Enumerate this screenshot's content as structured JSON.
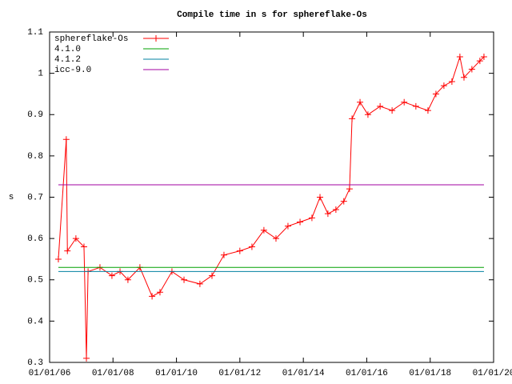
{
  "chart_data": {
    "type": "line",
    "title": "Compile time in s for sphereflake-Os",
    "ylabel": "s",
    "xlim": [
      "2006-01-01",
      "2020-01-01"
    ],
    "xticks": [
      {
        "value": "2006-01-01",
        "label": "01/01/06"
      },
      {
        "value": "2008-01-01",
        "label": "01/01/08"
      },
      {
        "value": "2010-01-01",
        "label": "01/01/10"
      },
      {
        "value": "2012-01-01",
        "label": "01/01/12"
      },
      {
        "value": "2014-01-01",
        "label": "01/01/14"
      },
      {
        "value": "2016-01-01",
        "label": "01/01/16"
      },
      {
        "value": "2018-01-01",
        "label": "01/01/18"
      },
      {
        "value": "2020-01-01",
        "label": "01/01/20"
      }
    ],
    "ylim": [
      0.3,
      1.1
    ],
    "yticks": [
      0.3,
      0.4,
      0.5,
      0.6,
      0.7,
      0.8,
      0.9,
      1,
      1.1
    ],
    "grid": false,
    "legend": "top-left",
    "series": [
      {
        "name": "sphereflake-Os",
        "color": "#ff0000",
        "marker": "plus",
        "x": [
          "2006-04-12",
          "2006-07-12",
          "2006-07-25",
          "2006-10-31",
          "2007-02-01",
          "2007-03-01",
          "2007-03-20",
          "2007-08-04",
          "2007-12-20",
          "2008-03-22",
          "2008-06-21",
          "2008-11-06",
          "2009-03-26",
          "2009-06-25",
          "2009-11-10",
          "2010-03-29",
          "2010-09-28",
          "2011-02-14",
          "2011-07-02",
          "2012-01-01",
          "2012-05-19",
          "2012-10-04",
          "2013-02-20",
          "2013-07-08",
          "2013-11-24",
          "2014-04-10",
          "2014-07-12",
          "2014-10-11",
          "2015-01-11",
          "2015-04-12",
          "2015-06-17",
          "2015-07-16",
          "2015-10-16",
          "2016-01-15",
          "2016-06-03",
          "2016-10-19",
          "2017-03-07",
          "2017-07-20",
          "2017-12-06",
          "2018-03-08",
          "2018-06-08",
          "2018-09-08",
          "2018-12-09",
          "2019-01-25",
          "2019-04-26",
          "2019-07-27",
          "2019-09-12"
        ],
        "values": [
          0.55,
          0.84,
          0.57,
          0.6,
          0.58,
          0.31,
          0.52,
          0.53,
          0.51,
          0.52,
          0.5,
          0.53,
          0.46,
          0.47,
          0.52,
          0.5,
          0.49,
          0.51,
          0.56,
          0.57,
          0.58,
          0.62,
          0.6,
          0.63,
          0.64,
          0.65,
          0.7,
          0.66,
          0.67,
          0.69,
          0.72,
          0.89,
          0.93,
          0.9,
          0.92,
          0.91,
          0.93,
          0.92,
          0.91,
          0.95,
          0.97,
          0.98,
          1.04,
          0.99,
          1.01,
          1.03,
          1.04
        ]
      },
      {
        "name": "4.1.0",
        "color": "#00a000",
        "x": [
          "2006-04-12",
          "2019-09-12"
        ],
        "values": [
          0.53,
          0.53
        ]
      },
      {
        "name": "4.1.2",
        "color": "#0080a0",
        "x": [
          "2006-04-12",
          "2019-09-12"
        ],
        "values": [
          0.52,
          0.52
        ]
      },
      {
        "name": "icc-9.0",
        "color": "#a000a0",
        "x": [
          "2006-04-12",
          "2019-09-12"
        ],
        "values": [
          0.73,
          0.73
        ]
      }
    ]
  }
}
